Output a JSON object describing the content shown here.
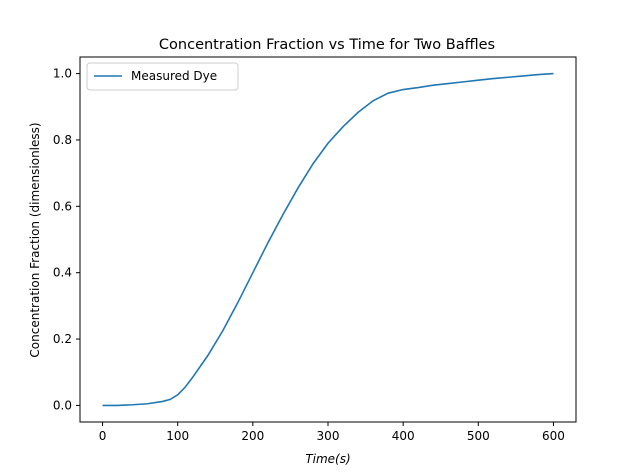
{
  "chart_data": {
    "type": "line",
    "title": "Concentration Fraction vs Time for Two Baffles",
    "xlabel": "Time(s)",
    "ylabel": "Concentration Fraction (dimensionless)",
    "xlim": [
      -30,
      630
    ],
    "ylim": [
      -0.05,
      1.05
    ],
    "x_ticks": [
      0,
      100,
      200,
      300,
      400,
      500,
      600
    ],
    "y_ticks": [
      0.0,
      0.2,
      0.4,
      0.6,
      0.8,
      1.0
    ],
    "x_tick_labels": [
      "0",
      "100",
      "200",
      "300",
      "400",
      "500",
      "600"
    ],
    "y_tick_labels": [
      "0.0",
      "0.2",
      "0.4",
      "0.6",
      "0.8",
      "1.0"
    ],
    "grid": false,
    "legend_position": "top-left",
    "series": [
      {
        "name": "Measured Dye",
        "color": "#1f77b4",
        "x": [
          0,
          20,
          40,
          60,
          80,
          90,
          100,
          110,
          120,
          140,
          160,
          180,
          200,
          220,
          240,
          260,
          280,
          300,
          320,
          340,
          360,
          380,
          400,
          420,
          440,
          460,
          480,
          500,
          520,
          540,
          560,
          580,
          600
        ],
        "y": [
          0.0,
          0.0,
          0.002,
          0.005,
          0.012,
          0.018,
          0.032,
          0.055,
          0.085,
          0.15,
          0.225,
          0.31,
          0.4,
          0.49,
          0.575,
          0.655,
          0.728,
          0.79,
          0.84,
          0.883,
          0.918,
          0.941,
          0.952,
          0.958,
          0.965,
          0.97,
          0.975,
          0.98,
          0.985,
          0.989,
          0.993,
          0.997,
          1.0
        ]
      }
    ]
  }
}
